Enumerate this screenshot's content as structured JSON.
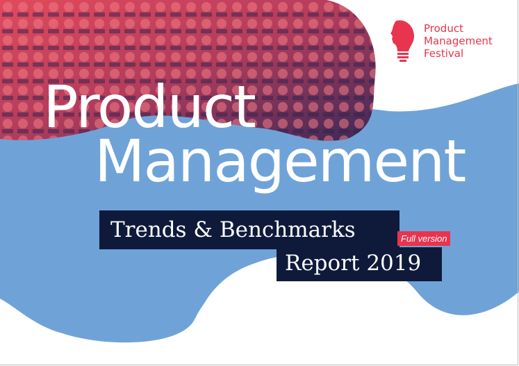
{
  "logo": {
    "lines": [
      "Product",
      "Management",
      "Festival"
    ],
    "icon": "lightbulb-head-icon",
    "color": "#e8344e"
  },
  "title": {
    "line1": "Product",
    "line2": "Management"
  },
  "subtitle": {
    "line1": "Trends & Benchmarks",
    "line2": "Report 2019",
    "badge": "Full version"
  },
  "colors": {
    "blob": "#6fa3d8",
    "box": "#0f1a3b",
    "accent": "#e8344e",
    "photo_dark": "#3a2856"
  }
}
